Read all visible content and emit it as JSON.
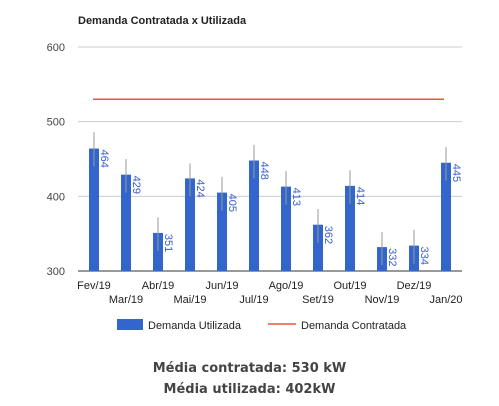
{
  "chart_data": {
    "type": "bar",
    "title": "Demanda Contratada x Utilizada",
    "categories": [
      "Fev/19",
      "Mar/19",
      "Abr/19",
      "Mai/19",
      "Jun/19",
      "Jul/19",
      "Ago/19",
      "Set/19",
      "Out/19",
      "Nov/19",
      "Dez/19",
      "Jan/20"
    ],
    "series": [
      {
        "name": "Demanda Utilizada",
        "type": "bar",
        "values": [
          464,
          429,
          351,
          424,
          405,
          448,
          413,
          362,
          414,
          332,
          334,
          445
        ],
        "error_high": [
          486,
          450,
          372,
          444,
          426,
          469,
          434,
          383,
          435,
          352,
          355,
          466
        ],
        "color": "#3366cc"
      },
      {
        "name": "Demanda Contratada",
        "type": "line",
        "values": [
          530,
          530,
          530,
          530,
          530,
          530,
          530,
          530,
          530,
          530,
          530,
          530
        ],
        "color": "#e8563f"
      }
    ],
    "ylim": [
      300,
      600
    ],
    "yticks": [
      300,
      400,
      500,
      600
    ],
    "grid": true,
    "legend": "bottom"
  },
  "summary": {
    "contracted": "Média contratada: 530 kW",
    "used": "Média utilizada: 402kW"
  }
}
